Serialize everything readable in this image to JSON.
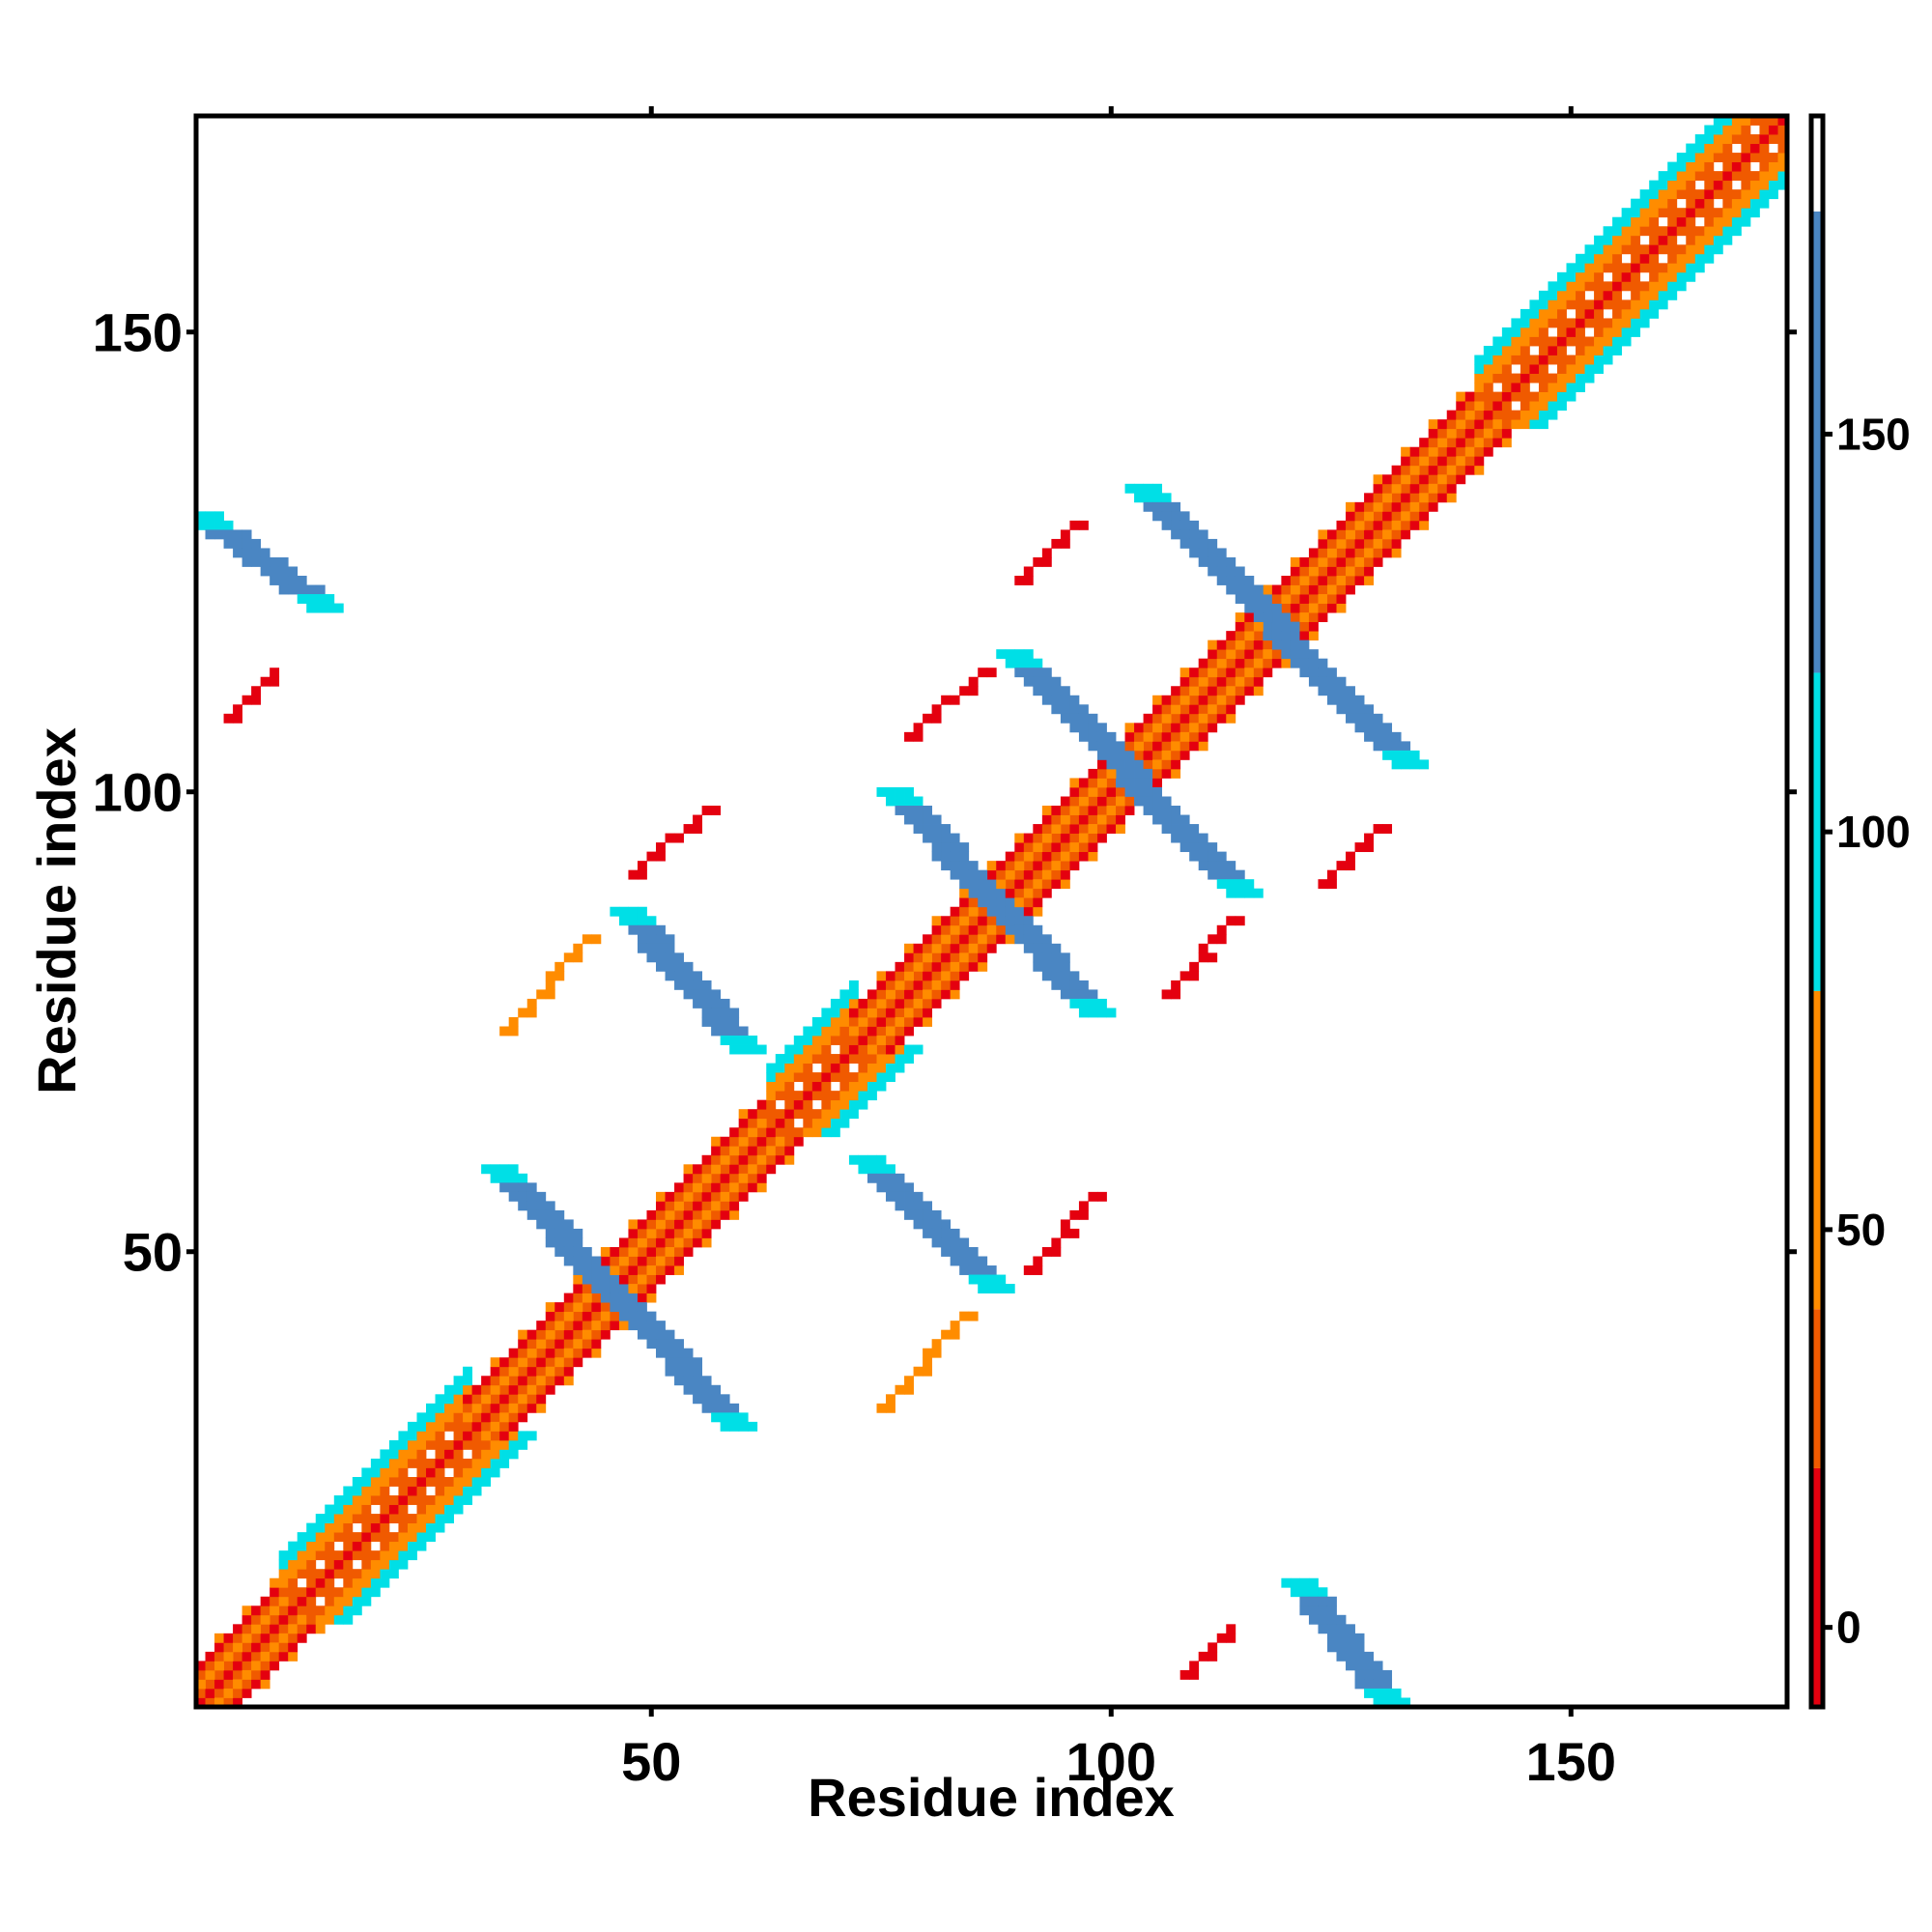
{
  "chart_data": {
    "type": "heatmap",
    "title": "",
    "xlabel": "Residue index",
    "ylabel": "Residue index",
    "xlim": [
      1,
      173
    ],
    "ylim": [
      1,
      173
    ],
    "xticks": [
      50,
      100,
      150
    ],
    "yticks": [
      50,
      100,
      150
    ],
    "colorbar": {
      "ticks": [
        0,
        50,
        100,
        150
      ],
      "range": [
        -10,
        190
      ],
      "bands": [
        {
          "from": -10,
          "to": 20,
          "color": "#e4000f"
        },
        {
          "from": 20,
          "to": 40,
          "color": "#f05a00"
        },
        {
          "from": 40,
          "to": 80,
          "color": "#ff8c00"
        },
        {
          "from": 80,
          "to": 120,
          "color": "#00dfe6"
        },
        {
          "from": 120,
          "to": 178,
          "color": "#4a86c3"
        },
        {
          "from": 178,
          "to": 190,
          "color": "#ffffff"
        }
      ]
    },
    "features": [
      {
        "kind": "diagonal-band",
        "from": 1,
        "to": 173
      },
      {
        "kind": "helix-diagonal",
        "residues": [
          1,
          10
        ],
        "color": "red"
      },
      {
        "kind": "strand-diagonal",
        "residues": [
          10,
          30
        ],
        "color": "orange"
      },
      {
        "kind": "helix-diagonal",
        "residues": [
          30,
          63
        ],
        "color": "red"
      },
      {
        "kind": "strand-diagonal",
        "residues": [
          63,
          72
        ],
        "color": "orange"
      },
      {
        "kind": "helix-diagonal",
        "residues": [
          72,
          140
        ],
        "color": "red"
      },
      {
        "kind": "strand-diagonal",
        "residues": [
          140,
          173
        ],
        "color": "orange"
      },
      {
        "kind": "antiparallel-contact",
        "start": [
          33,
          59
        ],
        "end": [
          59,
          31
        ],
        "color": "steel-blue"
      },
      {
        "kind": "antiparallel-contact",
        "start": [
          47,
          87
        ],
        "end": [
          60,
          72
        ],
        "color": "steel-blue"
      },
      {
        "kind": "antiparallel-contact",
        "start": [
          73,
          60
        ],
        "end": [
          87,
          46
        ],
        "color": "steel-blue"
      },
      {
        "kind": "antiparallel-contact",
        "start": [
          76,
          100
        ],
        "end": [
          98,
          76
        ],
        "color": "steel-blue"
      },
      {
        "kind": "antiparallel-contact",
        "start": [
          89,
          115
        ],
        "end": [
          114,
          89
        ],
        "color": "steel-blue"
      },
      {
        "kind": "antiparallel-contact",
        "start": [
          103,
          133
        ],
        "end": [
          132,
          103
        ],
        "color": "steel-blue"
      },
      {
        "kind": "antiparallel-contact",
        "start": [
          1,
          130
        ],
        "end": [
          14,
          120
        ],
        "color": "steel-blue"
      },
      {
        "kind": "antiparallel-contact",
        "start": [
          120,
          14
        ],
        "end": [
          130,
          1
        ],
        "color": "steel-blue"
      },
      {
        "kind": "parallel-contact",
        "from": [
          34,
          74
        ],
        "to": [
          43,
          84
        ],
        "color": "orange"
      },
      {
        "kind": "parallel-contact",
        "from": [
          48,
          91
        ],
        "to": [
          56,
          98
        ],
        "color": "red"
      },
      {
        "kind": "parallel-contact",
        "from": [
          75,
          33
        ],
        "to": [
          84,
          43
        ],
        "color": "orange"
      },
      {
        "kind": "parallel-contact",
        "from": [
          91,
          48
        ],
        "to": [
          98,
          56
        ],
        "color": "red"
      },
      {
        "kind": "parallel-contact",
        "from": [
          78,
          106
        ],
        "to": [
          86,
          113
        ],
        "color": "red"
      },
      {
        "kind": "parallel-contact",
        "from": [
          106,
          78
        ],
        "to": [
          113,
          86
        ],
        "color": "red"
      },
      {
        "kind": "parallel-contact",
        "from": [
          90,
          123
        ],
        "to": [
          96,
          129
        ],
        "color": "red"
      },
      {
        "kind": "parallel-contact",
        "from": [
          123,
          90
        ],
        "to": [
          129,
          96
        ],
        "color": "red"
      },
      {
        "kind": "parallel-contact",
        "from": [
          4,
          108
        ],
        "to": [
          9,
          113
        ],
        "color": "red"
      },
      {
        "kind": "parallel-contact",
        "from": [
          108,
          4
        ],
        "to": [
          113,
          9
        ],
        "color": "red"
      }
    ]
  }
}
